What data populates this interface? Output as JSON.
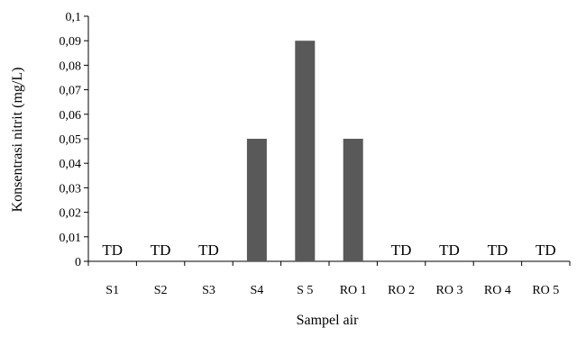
{
  "chart_data": {
    "type": "bar",
    "title": "",
    "xlabel": "Sampel air",
    "ylabel": "Konsentrasi nitrit (mg/L)",
    "categories": [
      "S1",
      "S2",
      "S3",
      "S4",
      "S 5",
      "RO 1",
      "RO 2",
      "RO 3",
      "RO 4",
      "RO 5"
    ],
    "values": [
      0,
      0,
      0,
      0.05,
      0.09,
      0.05,
      0,
      0,
      0,
      0
    ],
    "value_labels": [
      "TD",
      "TD",
      "TD",
      "",
      "",
      "",
      "TD",
      "TD",
      "TD",
      "TD"
    ],
    "ylim": [
      0,
      0.1
    ],
    "yticks": [
      "0",
      "0,01",
      "0,02",
      "0,03",
      "0,04",
      "0,05",
      "0,06",
      "0,07",
      "0,08",
      "0,09",
      "0,1"
    ],
    "grid": false,
    "legend": "none",
    "bar_color": "#595959",
    "axis_color": "#000000"
  }
}
